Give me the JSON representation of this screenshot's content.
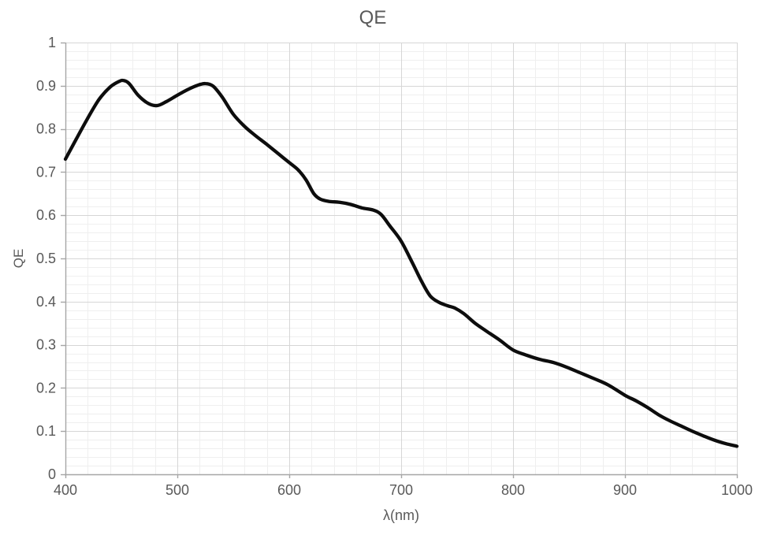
{
  "chart": {
    "title": "QE",
    "x_axis_title": "λ(nm)",
    "y_axis_title": "QE"
  },
  "chart_data": {
    "type": "line",
    "title": "QE",
    "xlabel": "λ(nm)",
    "ylabel": "QE",
    "xlim": [
      400,
      1000
    ],
    "ylim": [
      0,
      1
    ],
    "x_tick_labels": [
      "400",
      "500",
      "600",
      "700",
      "800",
      "900",
      "1000"
    ],
    "y_tick_labels": [
      "0",
      "0.1",
      "0.2",
      "0.3",
      "0.4",
      "0.5",
      "0.6",
      "0.7",
      "0.8",
      "0.9",
      "1"
    ],
    "x_major_step": 100,
    "y_major_step": 0.1,
    "x_minor_step": 20,
    "y_minor_step": 0.02,
    "grid": {
      "major": true,
      "minor": true
    },
    "legend_position": "none",
    "colors": {
      "curve": "#0d0d0d",
      "major_grid": "#d6d6d6",
      "minor_grid": "#efefef",
      "axis_line": "#a6a6a6",
      "text": "#595959",
      "background": "#ffffff"
    },
    "series": [
      {
        "name": "QE",
        "points": [
          [
            400,
            0.73
          ],
          [
            410,
            0.778
          ],
          [
            420,
            0.825
          ],
          [
            430,
            0.868
          ],
          [
            440,
            0.897
          ],
          [
            448,
            0.91
          ],
          [
            452,
            0.912
          ],
          [
            457,
            0.905
          ],
          [
            465,
            0.878
          ],
          [
            474,
            0.859
          ],
          [
            482,
            0.854
          ],
          [
            490,
            0.863
          ],
          [
            500,
            0.878
          ],
          [
            510,
            0.892
          ],
          [
            518,
            0.901
          ],
          [
            525,
            0.905
          ],
          [
            532,
            0.899
          ],
          [
            540,
            0.874
          ],
          [
            550,
            0.834
          ],
          [
            560,
            0.806
          ],
          [
            570,
            0.784
          ],
          [
            580,
            0.764
          ],
          [
            590,
            0.743
          ],
          [
            600,
            0.722
          ],
          [
            608,
            0.705
          ],
          [
            615,
            0.682
          ],
          [
            622,
            0.65
          ],
          [
            628,
            0.637
          ],
          [
            636,
            0.632
          ],
          [
            645,
            0.63
          ],
          [
            655,
            0.625
          ],
          [
            665,
            0.617
          ],
          [
            675,
            0.612
          ],
          [
            682,
            0.602
          ],
          [
            690,
            0.575
          ],
          [
            700,
            0.54
          ],
          [
            710,
            0.49
          ],
          [
            718,
            0.448
          ],
          [
            726,
            0.413
          ],
          [
            734,
            0.398
          ],
          [
            742,
            0.39
          ],
          [
            748,
            0.385
          ],
          [
            756,
            0.372
          ],
          [
            766,
            0.35
          ],
          [
            776,
            0.332
          ],
          [
            788,
            0.311
          ],
          [
            800,
            0.288
          ],
          [
            812,
            0.276
          ],
          [
            824,
            0.266
          ],
          [
            836,
            0.259
          ],
          [
            848,
            0.248
          ],
          [
            860,
            0.235
          ],
          [
            872,
            0.222
          ],
          [
            885,
            0.207
          ],
          [
            900,
            0.183
          ],
          [
            910,
            0.17
          ],
          [
            920,
            0.155
          ],
          [
            930,
            0.138
          ],
          [
            940,
            0.124
          ],
          [
            950,
            0.112
          ],
          [
            960,
            0.1
          ],
          [
            970,
            0.089
          ],
          [
            980,
            0.079
          ],
          [
            990,
            0.071
          ],
          [
            1000,
            0.065
          ]
        ]
      }
    ]
  }
}
